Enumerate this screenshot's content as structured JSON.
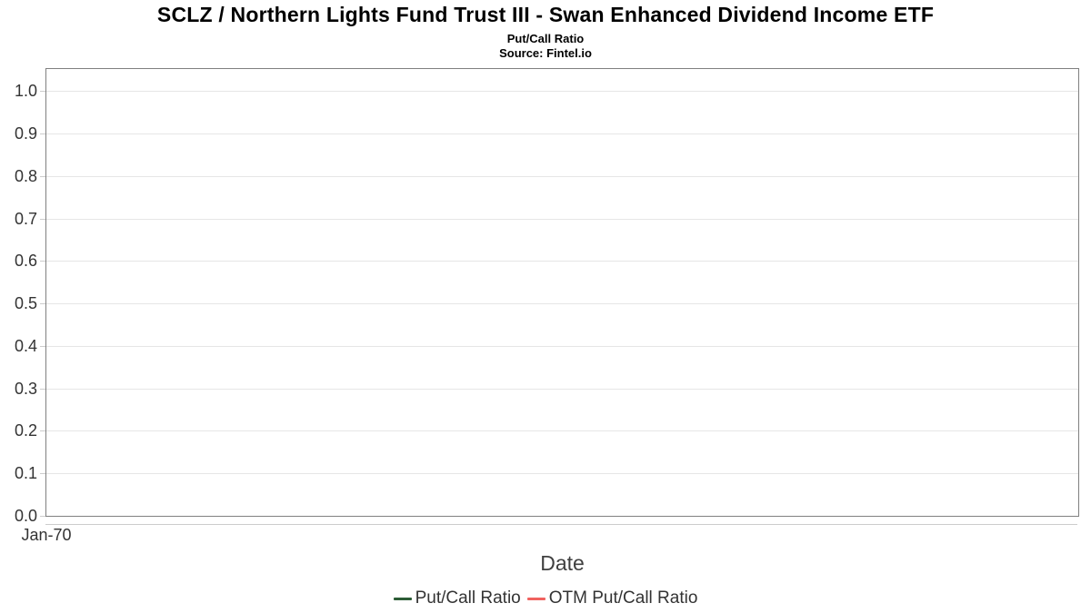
{
  "chart_data": {
    "type": "line",
    "title": "SCLZ / Northern Lights Fund Trust III - Swan Enhanced Dividend Income ETF",
    "subtitle": "Put/Call Ratio",
    "source": "Source: Fintel.io",
    "xlabel": "Date",
    "ylabel": "",
    "x_tick_labels": [
      "Jan-70"
    ],
    "y_tick_labels": [
      "0.0",
      "0.1",
      "0.2",
      "0.3",
      "0.4",
      "0.5",
      "0.6",
      "0.7",
      "0.8",
      "0.9",
      "1.0"
    ],
    "y_tick_values": [
      0,
      0.1,
      0.2,
      0.3,
      0.4,
      0.5,
      0.6,
      0.7,
      0.8,
      0.9,
      1.0
    ],
    "ylim": [
      0,
      1.052
    ],
    "grid": true,
    "legend_position": "bottom-center",
    "series": [
      {
        "name": "Put/Call Ratio",
        "color": "#2c5c36",
        "x": [],
        "y": []
      },
      {
        "name": "OTM Put/Call Ratio",
        "color": "#f0625f",
        "x": [],
        "y": []
      }
    ]
  },
  "colors": {
    "background": "#ffffff",
    "plot_border": "#808080",
    "gridline": "#e6e6e6",
    "axis_line": "#cccccc",
    "tick_mark": "#cccccc",
    "title_text": "#000000",
    "tick_label_text": "#333333",
    "axis_title_text": "#404040",
    "legend_text": "#333333"
  }
}
